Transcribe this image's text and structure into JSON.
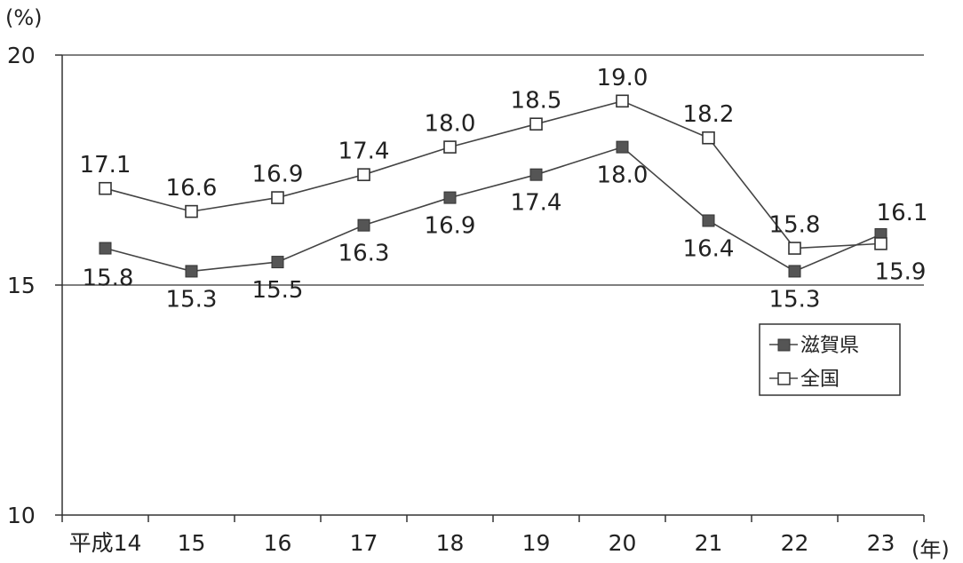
{
  "chart_data": {
    "type": "line",
    "ylabel": "(%)",
    "xunit": "(年)",
    "ylim": [
      10,
      20
    ],
    "yticks": [
      "20",
      "15",
      "10"
    ],
    "categories": [
      "平成14",
      "15",
      "16",
      "17",
      "18",
      "19",
      "20",
      "21",
      "22",
      "23"
    ],
    "series": [
      {
        "name": "滋賀県",
        "marker": "filled-square",
        "color": "#555555",
        "values": [
          15.8,
          15.3,
          15.5,
          16.3,
          16.9,
          17.4,
          18.0,
          16.4,
          15.3,
          16.1
        ],
        "labels": [
          "15.8",
          "15.3",
          "15.5",
          "16.3",
          "16.9",
          "17.4",
          "18.0",
          "16.4",
          "15.3",
          "16.1"
        ]
      },
      {
        "name": "全国",
        "marker": "open-square",
        "color": "#555555",
        "values": [
          17.1,
          16.6,
          16.9,
          17.4,
          18.0,
          18.5,
          19.0,
          18.2,
          15.8,
          15.9
        ],
        "labels": [
          "17.1",
          "16.6",
          "16.9",
          "17.4",
          "18.0",
          "18.5",
          "19.0",
          "18.2",
          "15.8",
          "15.9"
        ]
      }
    ],
    "grid": "horizontal",
    "legend": "right"
  }
}
